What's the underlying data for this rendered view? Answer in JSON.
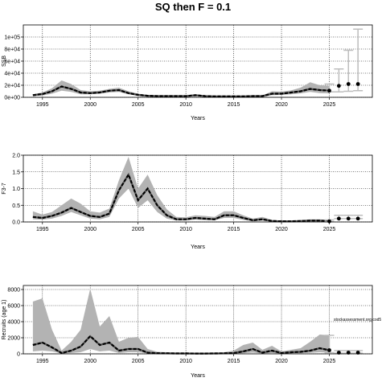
{
  "title": "SQ then F = 0.1",
  "watermark": "stockassessment.org,cod5",
  "chart_data": [
    {
      "type": "line",
      "ylabel": "SSB",
      "xlabel": "Years",
      "xlim": [
        1993,
        2029.5
      ],
      "ylim": [
        0,
        120000
      ],
      "x_ticks": [
        1995,
        2000,
        2005,
        2010,
        2015,
        2020,
        2025
      ],
      "y_ticks": [
        0,
        20000,
        40000,
        60000,
        80000,
        100000
      ],
      "y_tick_labels": [
        "0e+00",
        "2e+04",
        "4e+04",
        "6e+04",
        "8e+04",
        "1e+05"
      ],
      "grid": true,
      "x": [
        1994,
        1995,
        1996,
        1997,
        1998,
        1999,
        2000,
        2001,
        2002,
        2003,
        2004,
        2005,
        2006,
        2007,
        2008,
        2009,
        2010,
        2011,
        2012,
        2013,
        2014,
        2015,
        2016,
        2017,
        2018,
        2019,
        2020,
        2021,
        2022,
        2023,
        2024,
        2025
      ],
      "estimate": [
        3500,
        5500,
        10000,
        18000,
        14000,
        8000,
        7000,
        8000,
        11000,
        12000,
        7000,
        4000,
        2500,
        2000,
        2000,
        2000,
        2000,
        3500,
        2000,
        1500,
        1500,
        1500,
        1500,
        2000,
        2000,
        6000,
        6000,
        8000,
        10000,
        14000,
        12000,
        11000
      ],
      "lower": [
        2000,
        3000,
        6000,
        11000,
        9000,
        5000,
        5000,
        6000,
        8000,
        9000,
        5000,
        2500,
        1500,
        1000,
        1000,
        1000,
        1000,
        2000,
        1000,
        1000,
        1000,
        1000,
        1000,
        1000,
        1000,
        3500,
        4000,
        5000,
        6500,
        9000,
        7000,
        6500
      ],
      "upper": [
        5000,
        8000,
        15000,
        28000,
        22000,
        12000,
        10000,
        11000,
        14000,
        16000,
        10000,
        6000,
        4000,
        3000,
        3000,
        3000,
        3000,
        5000,
        3000,
        2500,
        2500,
        2500,
        2500,
        3000,
        3000,
        10000,
        9500,
        11500,
        16000,
        25000,
        20000,
        19000
      ],
      "forecast_x": [
        2025,
        2026,
        2027,
        2028
      ],
      "forecast_median": [
        11000,
        19000,
        22000,
        22000
      ],
      "forecast_lower": [
        9000,
        9000,
        10000,
        11000
      ],
      "forecast_upper": [
        22000,
        47000,
        78000,
        113000
      ]
    },
    {
      "type": "line",
      "ylabel": "F3-7",
      "xlabel": "Years",
      "xlim": [
        1993,
        2029.5
      ],
      "ylim": [
        0,
        2.0
      ],
      "x_ticks": [
        1995,
        2000,
        2005,
        2010,
        2015,
        2020,
        2025
      ],
      "y_ticks": [
        0,
        0.5,
        1.0,
        1.5,
        2.0
      ],
      "y_tick_labels": [
        "0.0",
        "0.5",
        "1.0",
        "1.5",
        "2.0"
      ],
      "grid": true,
      "x": [
        1994,
        1995,
        1996,
        1997,
        1998,
        1999,
        2000,
        2001,
        2002,
        2003,
        2004,
        2005,
        2006,
        2007,
        2008,
        2009,
        2010,
        2011,
        2012,
        2013,
        2014,
        2015,
        2016,
        2017,
        2018,
        2019,
        2020,
        2021,
        2022,
        2023,
        2024,
        2025
      ],
      "estimate": [
        0.15,
        0.12,
        0.18,
        0.28,
        0.42,
        0.3,
        0.18,
        0.15,
        0.25,
        0.95,
        1.42,
        0.65,
        1.0,
        0.5,
        0.2,
        0.08,
        0.08,
        0.12,
        0.1,
        0.08,
        0.2,
        0.2,
        0.12,
        0.05,
        0.08,
        0.03,
        0.02,
        0.02,
        0.03,
        0.04,
        0.04,
        0.02
      ],
      "lower": [
        0.08,
        0.07,
        0.1,
        0.18,
        0.3,
        0.2,
        0.1,
        0.08,
        0.15,
        0.7,
        1.0,
        0.42,
        0.65,
        0.3,
        0.1,
        0.04,
        0.04,
        0.07,
        0.05,
        0.05,
        0.12,
        0.12,
        0.06,
        0.02,
        0.04,
        0.01,
        0.01,
        0.01,
        0.01,
        0.02,
        0.02,
        0.01
      ],
      "upper": [
        0.32,
        0.22,
        0.3,
        0.5,
        0.7,
        0.55,
        0.32,
        0.28,
        0.4,
        1.25,
        1.95,
        1.0,
        1.42,
        0.8,
        0.38,
        0.15,
        0.14,
        0.2,
        0.18,
        0.15,
        0.32,
        0.32,
        0.2,
        0.1,
        0.15,
        0.06,
        0.04,
        0.04,
        0.05,
        0.08,
        0.08,
        0.06
      ],
      "forecast_x": [
        2025,
        2026,
        2027,
        2028
      ],
      "forecast_median": [
        0.02,
        0.1,
        0.1,
        0.1
      ],
      "forecast_lower": [
        0.01,
        0.1,
        0.1,
        0.1
      ],
      "forecast_upper": [
        0.06,
        0.2,
        0.2,
        0.2
      ]
    },
    {
      "type": "line",
      "ylabel": "Recruits (age 1)",
      "xlabel": "Years",
      "xlim": [
        1993,
        2029.5
      ],
      "ylim": [
        0,
        8500
      ],
      "x_ticks": [
        1995,
        2000,
        2005,
        2010,
        2015,
        2020,
        2025
      ],
      "y_ticks": [
        0,
        2000,
        4000,
        6000,
        8000
      ],
      "y_tick_labels": [
        "0",
        "2000",
        "4000",
        "6000",
        "8000"
      ],
      "grid": true,
      "x": [
        1994,
        1995,
        1996,
        1997,
        1998,
        1999,
        2000,
        2001,
        2002,
        2003,
        2004,
        2005,
        2006,
        2007,
        2008,
        2009,
        2010,
        2011,
        2012,
        2013,
        2014,
        2015,
        2016,
        2017,
        2018,
        2019,
        2020,
        2021,
        2022,
        2023,
        2024,
        2025
      ],
      "estimate": [
        1100,
        1400,
        800,
        100,
        400,
        900,
        2200,
        1100,
        1400,
        400,
        600,
        600,
        150,
        80,
        60,
        50,
        50,
        40,
        40,
        50,
        60,
        100,
        300,
        600,
        150,
        400,
        100,
        200,
        250,
        400,
        700,
        450
      ],
      "lower": [
        300,
        400,
        300,
        40,
        100,
        200,
        600,
        300,
        400,
        100,
        200,
        200,
        50,
        30,
        20,
        20,
        20,
        15,
        15,
        20,
        20,
        40,
        80,
        150,
        40,
        100,
        30,
        60,
        80,
        120,
        200,
        150
      ],
      "upper": [
        6500,
        6900,
        3000,
        400,
        1500,
        3000,
        8100,
        3400,
        4700,
        1500,
        2000,
        2100,
        600,
        250,
        200,
        150,
        150,
        120,
        120,
        150,
        200,
        400,
        1100,
        1400,
        500,
        1000,
        300,
        500,
        700,
        1500,
        2400,
        2300
      ],
      "forecast_x": [
        2025,
        2026,
        2027,
        2028
      ],
      "forecast_median": [
        450,
        150,
        150,
        150
      ],
      "forecast_lower": [
        150,
        80,
        80,
        80
      ],
      "forecast_upper": [
        2300,
        400,
        400,
        400
      ]
    }
  ]
}
